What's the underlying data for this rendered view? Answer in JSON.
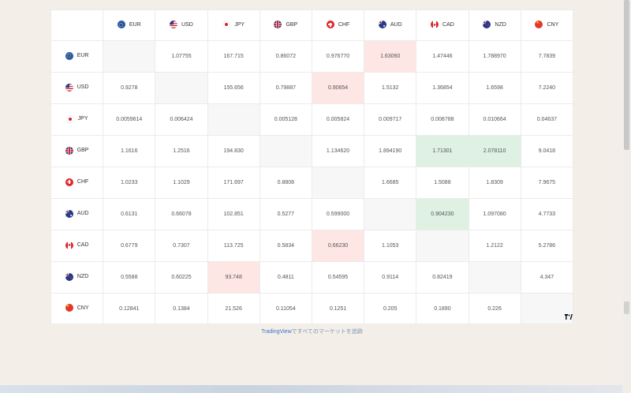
{
  "currencies": [
    {
      "code": "EUR",
      "icon": "eu-flag-icon"
    },
    {
      "code": "USD",
      "icon": "us-flag-icon"
    },
    {
      "code": "JPY",
      "icon": "japan-flag-icon"
    },
    {
      "code": "GBP",
      "icon": "uk-flag-icon"
    },
    {
      "code": "CHF",
      "icon": "swiss-flag-icon"
    },
    {
      "code": "AUD",
      "icon": "australia-flag-icon"
    },
    {
      "code": "CAD",
      "icon": "canada-flag-icon"
    },
    {
      "code": "NZD",
      "icon": "new-zealand-flag-icon"
    },
    {
      "code": "CNY",
      "icon": "china-flag-icon"
    }
  ],
  "rates": [
    [
      "",
      "1.07755",
      "167.715",
      "0.86072",
      "0.976770",
      "1.63060",
      "1.47446",
      "1.788970",
      "7.7839"
    ],
    [
      "0.9278",
      "",
      "155.656",
      "0.79887",
      "0.90654",
      "1.5132",
      "1.36854",
      "1.6598",
      "7.2240"
    ],
    [
      "0.0059614",
      "0.006424",
      "",
      "0.005128",
      "0.005824",
      "0.009717",
      "0.008788",
      "0.010664",
      "0.04637"
    ],
    [
      "1.1616",
      "1.2516",
      "194.830",
      "",
      "1.134620",
      "1.894190",
      "1.71301",
      "2.078110",
      "9.0418"
    ],
    [
      "1.0233",
      "1.1029",
      "171.697",
      "0.8808",
      "",
      "1.6685",
      "1.5088",
      "1.8309",
      "7.9675"
    ],
    [
      "0.6131",
      "0.66078",
      "102.851",
      "0.5277",
      "0.599000",
      "",
      "0.904230",
      "1.097080",
      "4.7733"
    ],
    [
      "0.6779",
      "0.7307",
      "113.725",
      "0.5834",
      "0.66230",
      "1.1053",
      "",
      "1.2122",
      "5.2786"
    ],
    [
      "0.5588",
      "0.60225",
      "93.748",
      "0.4811",
      "0.54595",
      "0.9114",
      "0.82419",
      "",
      "4.347"
    ],
    [
      "0.12841",
      "0.1384",
      "21.526",
      "0.11054",
      "0.1251",
      "0.205",
      "0.1890",
      "0.226",
      ""
    ]
  ],
  "highlights": [
    {
      "row": 0,
      "col": 5,
      "tone": "down"
    },
    {
      "row": 1,
      "col": 4,
      "tone": "down"
    },
    {
      "row": 3,
      "col": 6,
      "tone": "up"
    },
    {
      "row": 3,
      "col": 7,
      "tone": "up"
    },
    {
      "row": 5,
      "col": 6,
      "tone": "up"
    },
    {
      "row": 6,
      "col": 4,
      "tone": "down"
    },
    {
      "row": 7,
      "col": 2,
      "tone": "down"
    }
  ],
  "colors": {
    "up": "#dff1e2",
    "down": "#fde6e4",
    "empty": "#f7f7f7",
    "page_background": "#f3efe8",
    "link": "#3f6fd0"
  },
  "footer": {
    "brand": "TradingView",
    "text": "ですべてのマーケットを追跡"
  },
  "widget_logo": "tradingview-logo-icon"
}
